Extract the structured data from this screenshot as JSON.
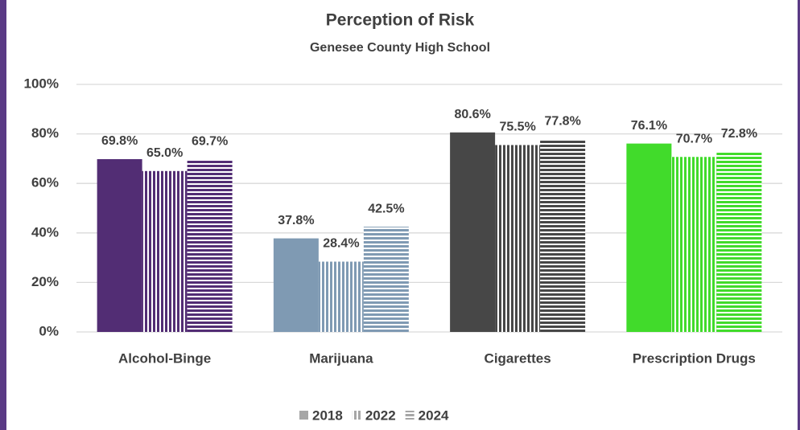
{
  "chart_data": {
    "type": "bar",
    "title": "Perception of Risk",
    "subtitle": "Genesee County High School",
    "categories": [
      "Alcohol-Binge",
      "Marijuana",
      "Cigarettes",
      "Prescription Drugs"
    ],
    "category_colors": [
      "#522d74",
      "#7f9ab3",
      "#474747",
      "#41db2b"
    ],
    "series": [
      {
        "name": "2018",
        "pattern": "solid",
        "values": [
          69.8,
          37.8,
          80.6,
          76.1
        ],
        "value_labels": [
          "69.8%",
          "37.8%",
          "80.6%",
          "76.1%"
        ]
      },
      {
        "name": "2022",
        "pattern": "vertical",
        "values": [
          65.0,
          28.4,
          75.5,
          70.7
        ],
        "value_labels": [
          "65.0%",
          "28.4%",
          "75.5%",
          "70.7%"
        ]
      },
      {
        "name": "2024",
        "pattern": "horizontal",
        "values": [
          69.7,
          42.5,
          77.8,
          72.8
        ],
        "value_labels": [
          "69.7%",
          "42.5%",
          "77.8%",
          "72.8%"
        ]
      }
    ],
    "legend_color": "#a6a6a6",
    "ylim": [
      0,
      100
    ],
    "yticks": [
      {
        "value": 0,
        "label": "0%"
      },
      {
        "value": 20,
        "label": "20%"
      },
      {
        "value": 40,
        "label": "40%"
      },
      {
        "value": 60,
        "label": "60%"
      },
      {
        "value": 80,
        "label": "80%"
      },
      {
        "value": 100,
        "label": "100%"
      }
    ],
    "grid": true,
    "legend": "bottom"
  }
}
